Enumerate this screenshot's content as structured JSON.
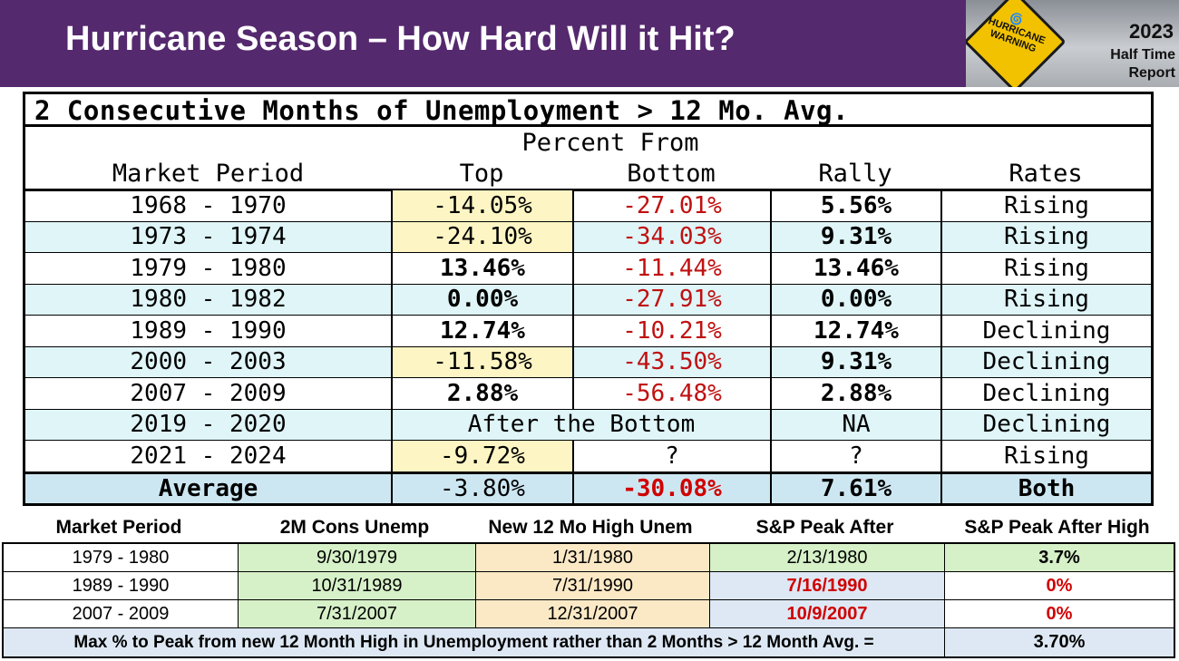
{
  "header": {
    "title": "Hurricane Season – How Hard Will it Hit?",
    "badge": {
      "sign_line1": "HURRICANE",
      "sign_line2": "WARNING",
      "year": "2023",
      "line1": "Half Time",
      "line2": "Report",
      "icon": "hurricane-icon"
    }
  },
  "main_table": {
    "title": "2 Consecutive Months of Unemployment > 12 Mo. Avg.",
    "header_group": "Percent From",
    "columns": [
      "Market Period",
      "Top",
      "Bottom",
      "Rally",
      "Rates"
    ],
    "rows": [
      {
        "period": "1968 - 1970",
        "top": "-14.05%",
        "bottom": "-27.01%",
        "rally": "5.56%",
        "rates": "Rising"
      },
      {
        "period": "1973 - 1974",
        "top": "-24.10%",
        "bottom": "-34.03%",
        "rally": "9.31%",
        "rates": "Rising"
      },
      {
        "period": "1979 - 1980",
        "top": "13.46%",
        "bottom": "-11.44%",
        "rally": "13.46%",
        "rates": "Rising"
      },
      {
        "period": "1980 - 1982",
        "top": "0.00%",
        "bottom": "-27.91%",
        "rally": "0.00%",
        "rates": "Rising"
      },
      {
        "period": "1989 - 1990",
        "top": "12.74%",
        "bottom": "-10.21%",
        "rally": "12.74%",
        "rates": "Declining"
      },
      {
        "period": "2000 - 2003",
        "top": "-11.58%",
        "bottom": "-43.50%",
        "rally": "9.31%",
        "rates": "Declining"
      },
      {
        "period": "2007 - 2009",
        "top": "2.88%",
        "bottom": "-56.48%",
        "rally": "2.88%",
        "rates": "Declining"
      },
      {
        "period": "2019 - 2020",
        "span": "After the Bottom",
        "rally": "NA",
        "rates": "Declining"
      },
      {
        "period": "2021 - 2024",
        "top": "-9.72%",
        "bottom": "?",
        "rally": "?",
        "rates": "Rising"
      }
    ],
    "average": {
      "label": "Average",
      "top": "-3.80%",
      "bottom": "-30.08%",
      "rally": "7.61%",
      "rates": "Both"
    }
  },
  "lower_table": {
    "columns": [
      "Market Period",
      "2M Cons Unemp",
      "New 12 Mo High Unem",
      "S&P Peak After",
      "S&P Peak After High"
    ],
    "rows": [
      {
        "period": "1979 - 1980",
        "cons": "9/30/1979",
        "high": "1/31/1980",
        "peak": "2/13/1980",
        "after_high": "3.7%"
      },
      {
        "period": "1989 - 1990",
        "cons": "10/31/1989",
        "high": "7/31/1990",
        "peak": "7/16/1990",
        "after_high": "0%"
      },
      {
        "period": "2007 - 2009",
        "cons": "7/31/2007",
        "high": "12/31/2007",
        "peak": "10/9/2007",
        "after_high": "0%"
      }
    ],
    "footer_label": "Max % to Peak  from new 12 Month High in Unemployment rather than 2 Months > 12 Month Avg. =",
    "footer_value": "3.70%"
  },
  "colors": {
    "header_bg": "#55296e",
    "negative_text": "#c01010",
    "highlight_yellow": "#fdf6c4",
    "row_alt": "#dff5f8",
    "green": "#d6f0c8",
    "peach": "#fbe9c6",
    "light_blue": "#dde8f4"
  }
}
